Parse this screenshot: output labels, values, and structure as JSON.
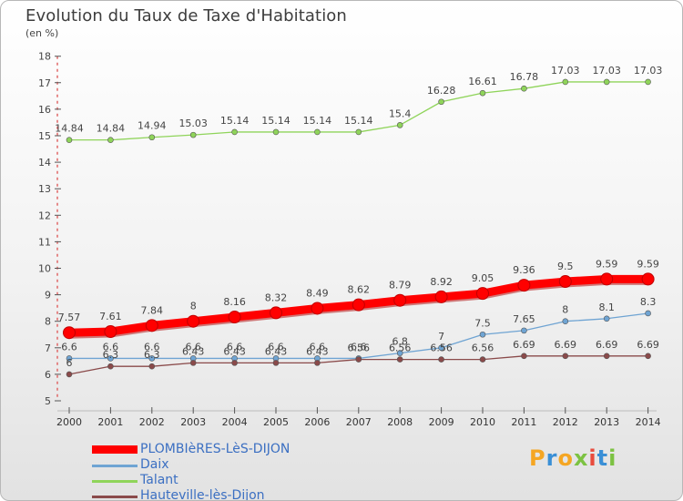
{
  "title": "Evolution du Taux de Taxe d'Habitation",
  "unit_label": "(en %)",
  "logo": {
    "text": "Proxiti",
    "colors": [
      "#f5a623",
      "#3a8fd6",
      "#f5a623",
      "#7cc242",
      "#e84c3d",
      "#3a8fd6",
      "#7cc242"
    ]
  },
  "chart_data": {
    "type": "line",
    "title": "Evolution du Taux de Taxe d'Habitation",
    "ylabel": "(en %)",
    "xlabel": "",
    "x": [
      "2000",
      "2001",
      "2002",
      "2003",
      "2004",
      "2005",
      "2006",
      "2007",
      "2008",
      "2009",
      "2010",
      "2011",
      "2012",
      "2013",
      "2014"
    ],
    "ylim": [
      5,
      18
    ],
    "yticks": [
      "5",
      "6",
      "7",
      "8",
      "9",
      "10",
      "11",
      "12",
      "13",
      "14",
      "15",
      "16",
      "17",
      "18"
    ],
    "grid": false,
    "legend_position": "bottom-left",
    "series": [
      {
        "name": "PLOMBIèRES-LèS-DIJON",
        "color": "#ff0000",
        "values": [
          7.57,
          7.61,
          7.84,
          8,
          8.16,
          8.32,
          8.49,
          8.62,
          8.79,
          8.92,
          9.05,
          9.36,
          9.5,
          9.59,
          9.59
        ],
        "labels": [
          "7.57",
          "7.61",
          "7.84",
          "8",
          "8.16",
          "8.32",
          "8.49",
          "8.62",
          "8.79",
          "8.92",
          "9.05",
          "9.36",
          "9.5",
          "9.59",
          "9.59"
        ]
      },
      {
        "name": "Daix",
        "color": "#6fa4d3",
        "values": [
          6.6,
          6.6,
          6.6,
          6.6,
          6.6,
          6.6,
          6.6,
          6.6,
          6.8,
          7,
          7.5,
          7.65,
          8,
          8.1,
          8.3
        ],
        "labels": [
          "6.6",
          "6.6",
          "6.6",
          "6.6",
          "6.6",
          "6.6",
          "6.6",
          "6.6",
          "6.8",
          "7",
          "7.5",
          "7.65",
          "8",
          "8.1",
          "8.3"
        ]
      },
      {
        "name": "Talant",
        "color": "#8fd45a",
        "values": [
          14.84,
          14.84,
          14.94,
          15.03,
          15.14,
          15.14,
          15.14,
          15.14,
          15.4,
          16.28,
          16.61,
          16.78,
          17.03,
          17.03,
          17.03
        ],
        "labels": [
          "14.84",
          "14.84",
          "14.94",
          "15.03",
          "15.14",
          "15.14",
          "15.14",
          "15.14",
          "15.4",
          "16.28",
          "16.61",
          "16.78",
          "17.03",
          "17.03",
          "17.03"
        ]
      },
      {
        "name": "Hauteville-lès-Dijon",
        "color": "#8a4a4a",
        "values": [
          6,
          6.3,
          6.3,
          6.43,
          6.43,
          6.43,
          6.43,
          6.56,
          6.56,
          6.56,
          6.56,
          6.69,
          6.69,
          6.69,
          6.69
        ],
        "labels": [
          "6",
          "6.3",
          "6.3",
          "6.43",
          "6.43",
          "6.43",
          "6.43",
          "6.56",
          "6.56",
          "6.56",
          "6.56",
          "6.69",
          "6.69",
          "6.69",
          "6.69"
        ]
      }
    ]
  }
}
